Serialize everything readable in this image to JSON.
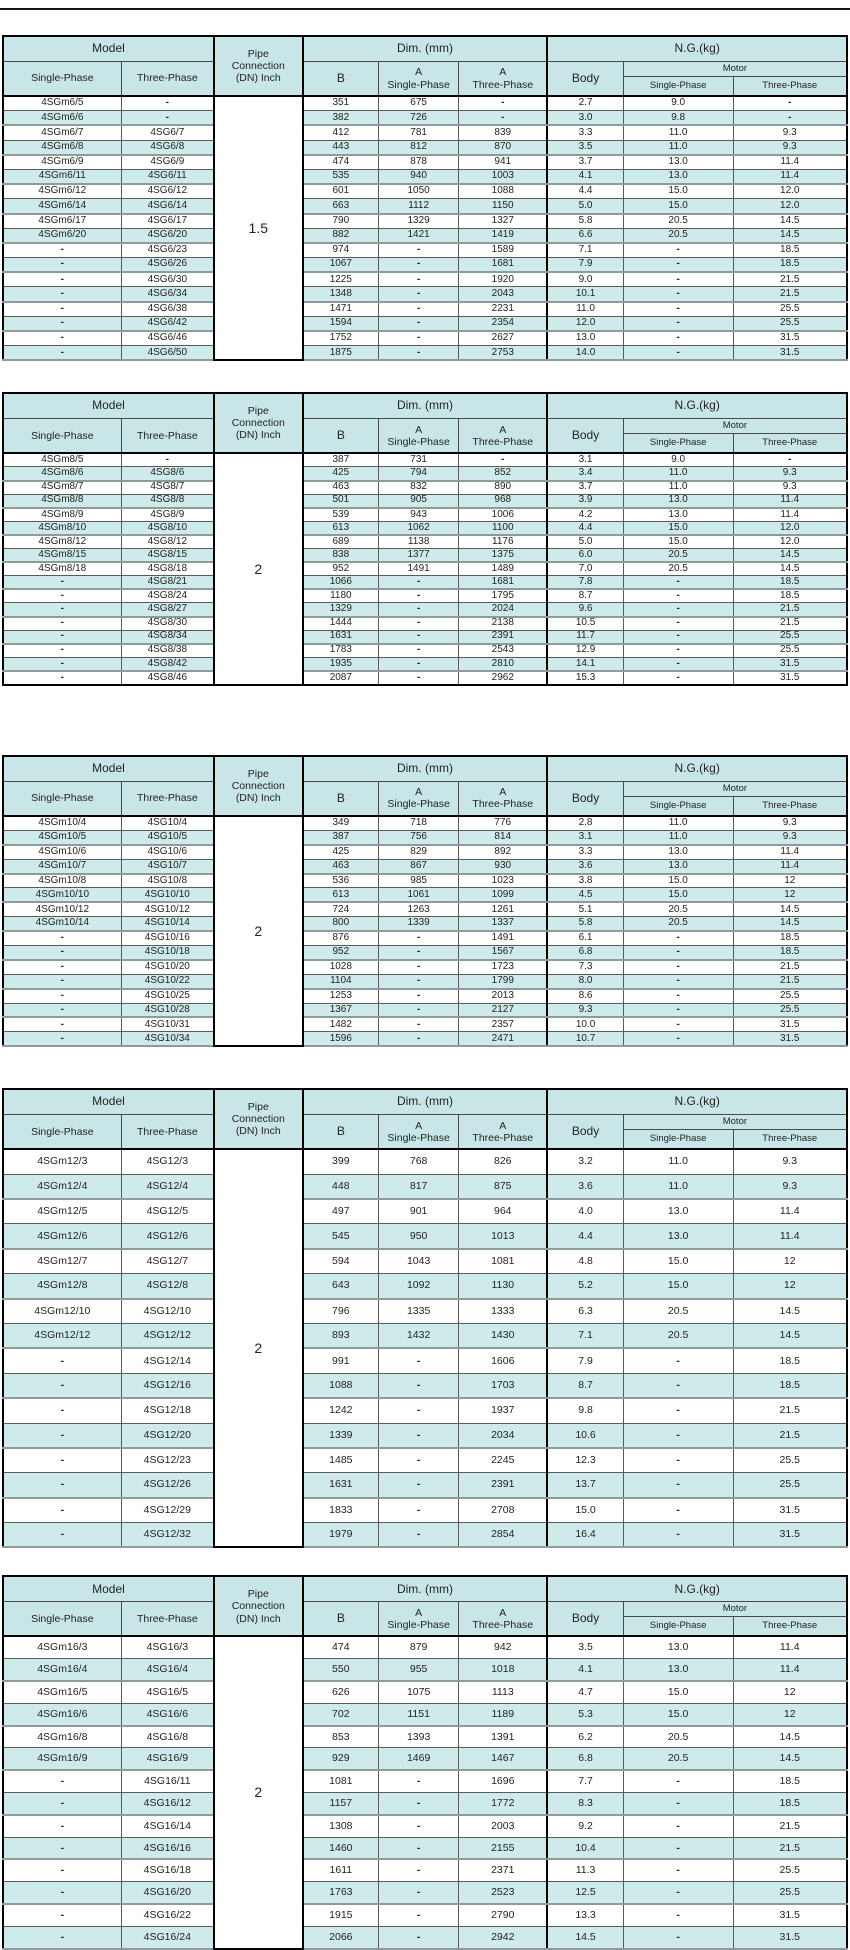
{
  "colors": {
    "header_bg": "#c8e6e8",
    "row_alt_bg": "#cfeaea",
    "border_dark": "#000000",
    "border_light": "#8f9b9b"
  },
  "header": {
    "model": "Model",
    "single_phase": "Single-Phase",
    "three_phase": "Three-Phase",
    "pipe": "Pipe\nConnection\n(DN) Inch",
    "dim": "Dim. (mm)",
    "b": "B",
    "a_single": "A\nSingle-Phase",
    "a_three": "A\nThree-Phase",
    "ng": "N.G.(kg)",
    "body": "Body",
    "motor": "Motor",
    "motor_single": "Single-Phase",
    "motor_three": "Three-Phase"
  },
  "tables": [
    {
      "pipe": "1.5",
      "rows": [
        [
          "4SGm6/5",
          "-",
          "351",
          "675",
          "-",
          "2.7",
          "9.0",
          "-"
        ],
        [
          "4SGm6/6",
          "-",
          "382",
          "726",
          "-",
          "3.0",
          "9.8",
          "-"
        ],
        [
          "4SGm6/7",
          "4SG6/7",
          "412",
          "781",
          "839",
          "3.3",
          "11.0",
          "9.3"
        ],
        [
          "4SGm6/8",
          "4SG6/8",
          "443",
          "812",
          "870",
          "3.5",
          "11.0",
          "9.3"
        ],
        [
          "4SGm6/9",
          "4SG6/9",
          "474",
          "878",
          "941",
          "3.7",
          "13.0",
          "11.4"
        ],
        [
          "4SGm6/11",
          "4SG6/11",
          "535",
          "940",
          "1003",
          "4.1",
          "13.0",
          "11.4"
        ],
        [
          "4SGm6/12",
          "4SG6/12",
          "601",
          "1050",
          "1088",
          "4.4",
          "15.0",
          "12.0"
        ],
        [
          "4SGm6/14",
          "4SG6/14",
          "663",
          "1112",
          "1150",
          "5.0",
          "15.0",
          "12.0"
        ],
        [
          "4SGm6/17",
          "4SG6/17",
          "790",
          "1329",
          "1327",
          "5.8",
          "20.5",
          "14.5"
        ],
        [
          "4SGm6/20",
          "4SG6/20",
          "882",
          "1421",
          "1419",
          "6.6",
          "20.5",
          "14.5"
        ],
        [
          "-",
          "4SG6/23",
          "974",
          "-",
          "1589",
          "7.1",
          "-",
          "18.5"
        ],
        [
          "-",
          "4SG6/26",
          "1067",
          "-",
          "1681",
          "7.9",
          "-",
          "18.5"
        ],
        [
          "-",
          "4SG6/30",
          "1225",
          "-",
          "1920",
          "9.0",
          "-",
          "21.5"
        ],
        [
          "-",
          "4SG6/34",
          "1348",
          "-",
          "2043",
          "10.1",
          "-",
          "21.5"
        ],
        [
          "-",
          "4SG6/38",
          "1471",
          "-",
          "2231",
          "11.0",
          "-",
          "25.5"
        ],
        [
          "-",
          "4SG6/42",
          "1594",
          "-",
          "2354",
          "12.0",
          "-",
          "25.5"
        ],
        [
          "-",
          "4SG6/46",
          "1752",
          "-",
          "2627",
          "13.0",
          "-",
          "31.5"
        ],
        [
          "-",
          "4SG6/50",
          "1875",
          "-",
          "2753",
          "14.0",
          "-",
          "31.5"
        ]
      ]
    },
    {
      "pipe": "2",
      "rows": [
        [
          "4SGm8/5",
          "-",
          "387",
          "731",
          "-",
          "3.1",
          "9.0",
          "-"
        ],
        [
          "4SGm8/6",
          "4SG8/6",
          "425",
          "794",
          "852",
          "3.4",
          "11.0",
          "9.3"
        ],
        [
          "4SGm8/7",
          "4SG8/7",
          "463",
          "832",
          "890",
          "3.7",
          "11.0",
          "9.3"
        ],
        [
          "4SGm8/8",
          "4SG8/8",
          "501",
          "905",
          "968",
          "3.9",
          "13.0",
          "11.4"
        ],
        [
          "4SGm8/9",
          "4SG8/9",
          "539",
          "943",
          "1006",
          "4.2",
          "13.0",
          "11.4"
        ],
        [
          "4SGm8/10",
          "4SG8/10",
          "613",
          "1062",
          "1100",
          "4.4",
          "15.0",
          "12.0"
        ],
        [
          "4SGm8/12",
          "4SG8/12",
          "689",
          "1138",
          "1176",
          "5.0",
          "15.0",
          "12.0"
        ],
        [
          "4SGm8/15",
          "4SG8/15",
          "838",
          "1377",
          "1375",
          "6.0",
          "20.5",
          "14.5"
        ],
        [
          "4SGm8/18",
          "4SG8/18",
          "952",
          "1491",
          "1489",
          "7.0",
          "20.5",
          "14.5"
        ],
        [
          "-",
          "4SG8/21",
          "1066",
          "-",
          "1681",
          "7.8",
          "-",
          "18.5"
        ],
        [
          "-",
          "4SG8/24",
          "1180",
          "-",
          "1795",
          "8.7",
          "-",
          "18.5"
        ],
        [
          "-",
          "4SG8/27",
          "1329",
          "-",
          "2024",
          "9.6",
          "-",
          "21.5"
        ],
        [
          "-",
          "4SG8/30",
          "1444",
          "-",
          "2138",
          "10.5",
          "-",
          "21.5"
        ],
        [
          "-",
          "4SG8/34",
          "1631",
          "-",
          "2391",
          "11.7",
          "-",
          "25.5"
        ],
        [
          "-",
          "4SG8/38",
          "1783",
          "-",
          "2543",
          "12.9",
          "-",
          "25.5"
        ],
        [
          "-",
          "4SG8/42",
          "1935",
          "-",
          "2810",
          "14.1",
          "-",
          "31.5"
        ],
        [
          "-",
          "4SG8/46",
          "2087",
          "-",
          "2962",
          "15.3",
          "-",
          "31.5"
        ]
      ]
    },
    {
      "pipe": "2",
      "rows": [
        [
          "4SGm10/4",
          "4SG10/4",
          "349",
          "718",
          "776",
          "2.8",
          "11.0",
          "9.3"
        ],
        [
          "4SGm10/5",
          "4SG10/5",
          "387",
          "756",
          "814",
          "3.1",
          "11.0",
          "9.3"
        ],
        [
          "4SGm10/6",
          "4SG10/6",
          "425",
          "829",
          "892",
          "3.3",
          "13.0",
          "11.4"
        ],
        [
          "4SGm10/7",
          "4SG10/7",
          "463",
          "867",
          "930",
          "3.6",
          "13.0",
          "11.4"
        ],
        [
          "4SGm10/8",
          "4SG10/8",
          "536",
          "985",
          "1023",
          "3.8",
          "15.0",
          "12"
        ],
        [
          "4SGm10/10",
          "4SG10/10",
          "613",
          "1061",
          "1099",
          "4.5",
          "15.0",
          "12"
        ],
        [
          "4SGm10/12",
          "4SG10/12",
          "724",
          "1263",
          "1261",
          "5.1",
          "20.5",
          "14.5"
        ],
        [
          "4SGm10/14",
          "4SG10/14",
          "800",
          "1339",
          "1337",
          "5.8",
          "20.5",
          "14.5"
        ],
        [
          "-",
          "4SG10/16",
          "876",
          "-",
          "1491",
          "6.1",
          "-",
          "18.5"
        ],
        [
          "-",
          "4SG10/18",
          "952",
          "-",
          "1567",
          "6.8",
          "-",
          "18.5"
        ],
        [
          "-",
          "4SG10/20",
          "1028",
          "-",
          "1723",
          "7.3",
          "-",
          "21.5"
        ],
        [
          "-",
          "4SG10/22",
          "1104",
          "-",
          "1799",
          "8.0",
          "-",
          "21.5"
        ],
        [
          "-",
          "4SG10/25",
          "1253",
          "-",
          "2013",
          "8.6",
          "-",
          "25.5"
        ],
        [
          "-",
          "4SG10/28",
          "1367",
          "-",
          "2127",
          "9.3",
          "-",
          "25.5"
        ],
        [
          "-",
          "4SG10/31",
          "1482",
          "-",
          "2357",
          "10.0",
          "-",
          "31.5"
        ],
        [
          "-",
          "4SG10/34",
          "1596",
          "-",
          "2471",
          "10.7",
          "-",
          "31.5"
        ]
      ]
    },
    {
      "pipe": "2",
      "rows": [
        [
          "4SGm12/3",
          "4SG12/3",
          "399",
          "768",
          "826",
          "3.2",
          "11.0",
          "9.3"
        ],
        [
          "4SGm12/4",
          "4SG12/4",
          "448",
          "817",
          "875",
          "3.6",
          "11.0",
          "9.3"
        ],
        [
          "4SGm12/5",
          "4SG12/5",
          "497",
          "901",
          "964",
          "4.0",
          "13.0",
          "11.4"
        ],
        [
          "4SGm12/6",
          "4SG12/6",
          "545",
          "950",
          "1013",
          "4.4",
          "13.0",
          "11.4"
        ],
        [
          "4SGm12/7",
          "4SG12/7",
          "594",
          "1043",
          "1081",
          "4.8",
          "15.0",
          "12"
        ],
        [
          "4SGm12/8",
          "4SG12/8",
          "643",
          "1092",
          "1130",
          "5.2",
          "15.0",
          "12"
        ],
        [
          "4SGm12/10",
          "4SG12/10",
          "796",
          "1335",
          "1333",
          "6.3",
          "20.5",
          "14.5"
        ],
        [
          "4SGm12/12",
          "4SG12/12",
          "893",
          "1432",
          "1430",
          "7.1",
          "20.5",
          "14.5"
        ],
        [
          "-",
          "4SG12/14",
          "991",
          "-",
          "1606",
          "7.9",
          "-",
          "18.5"
        ],
        [
          "-",
          "4SG12/16",
          "1088",
          "-",
          "1703",
          "8.7",
          "-",
          "18.5"
        ],
        [
          "-",
          "4SG12/18",
          "1242",
          "-",
          "1937",
          "9.8",
          "-",
          "21.5"
        ],
        [
          "-",
          "4SG12/20",
          "1339",
          "-",
          "2034",
          "10.6",
          "-",
          "21.5"
        ],
        [
          "-",
          "4SG12/23",
          "1485",
          "-",
          "2245",
          "12.3",
          "-",
          "25.5"
        ],
        [
          "-",
          "4SG12/26",
          "1631",
          "-",
          "2391",
          "13.7",
          "-",
          "25.5"
        ],
        [
          "-",
          "4SG12/29",
          "1833",
          "-",
          "2708",
          "15.0",
          "-",
          "31.5"
        ],
        [
          "-",
          "4SG12/32",
          "1979",
          "-",
          "2854",
          "16.4",
          "-",
          "31.5"
        ]
      ]
    },
    {
      "pipe": "2",
      "rows": [
        [
          "4SGm16/3",
          "4SG16/3",
          "474",
          "879",
          "942",
          "3.5",
          "13.0",
          "11.4"
        ],
        [
          "4SGm16/4",
          "4SG16/4",
          "550",
          "955",
          "1018",
          "4.1",
          "13.0",
          "11.4"
        ],
        [
          "4SGm16/5",
          "4SG16/5",
          "626",
          "1075",
          "1113",
          "4.7",
          "15.0",
          "12"
        ],
        [
          "4SGm16/6",
          "4SG16/6",
          "702",
          "1151",
          "1189",
          "5.3",
          "15.0",
          "12"
        ],
        [
          "4SGm16/8",
          "4SG16/8",
          "853",
          "1393",
          "1391",
          "6.2",
          "20.5",
          "14.5"
        ],
        [
          "4SGm16/9",
          "4SG16/9",
          "929",
          "1469",
          "1467",
          "6.8",
          "20.5",
          "14.5"
        ],
        [
          "-",
          "4SG16/11",
          "1081",
          "-",
          "1696",
          "7.7",
          "-",
          "18.5"
        ],
        [
          "-",
          "4SG16/12",
          "1157",
          "-",
          "1772",
          "8.3",
          "-",
          "18.5"
        ],
        [
          "-",
          "4SG16/14",
          "1308",
          "-",
          "2003",
          "9.2",
          "-",
          "21.5"
        ],
        [
          "-",
          "4SG16/16",
          "1460",
          "-",
          "2155",
          "10.4",
          "-",
          "21.5"
        ],
        [
          "-",
          "4SG16/18",
          "1611",
          "-",
          "2371",
          "11.3",
          "-",
          "25.5"
        ],
        [
          "-",
          "4SG16/20",
          "1763",
          "-",
          "2523",
          "12.5",
          "-",
          "25.5"
        ],
        [
          "-",
          "4SG16/22",
          "1915",
          "-",
          "2790",
          "13.3",
          "-",
          "31.5"
        ],
        [
          "-",
          "4SG16/24",
          "2066",
          "-",
          "2942",
          "14.5",
          "-",
          "31.5"
        ]
      ]
    }
  ]
}
